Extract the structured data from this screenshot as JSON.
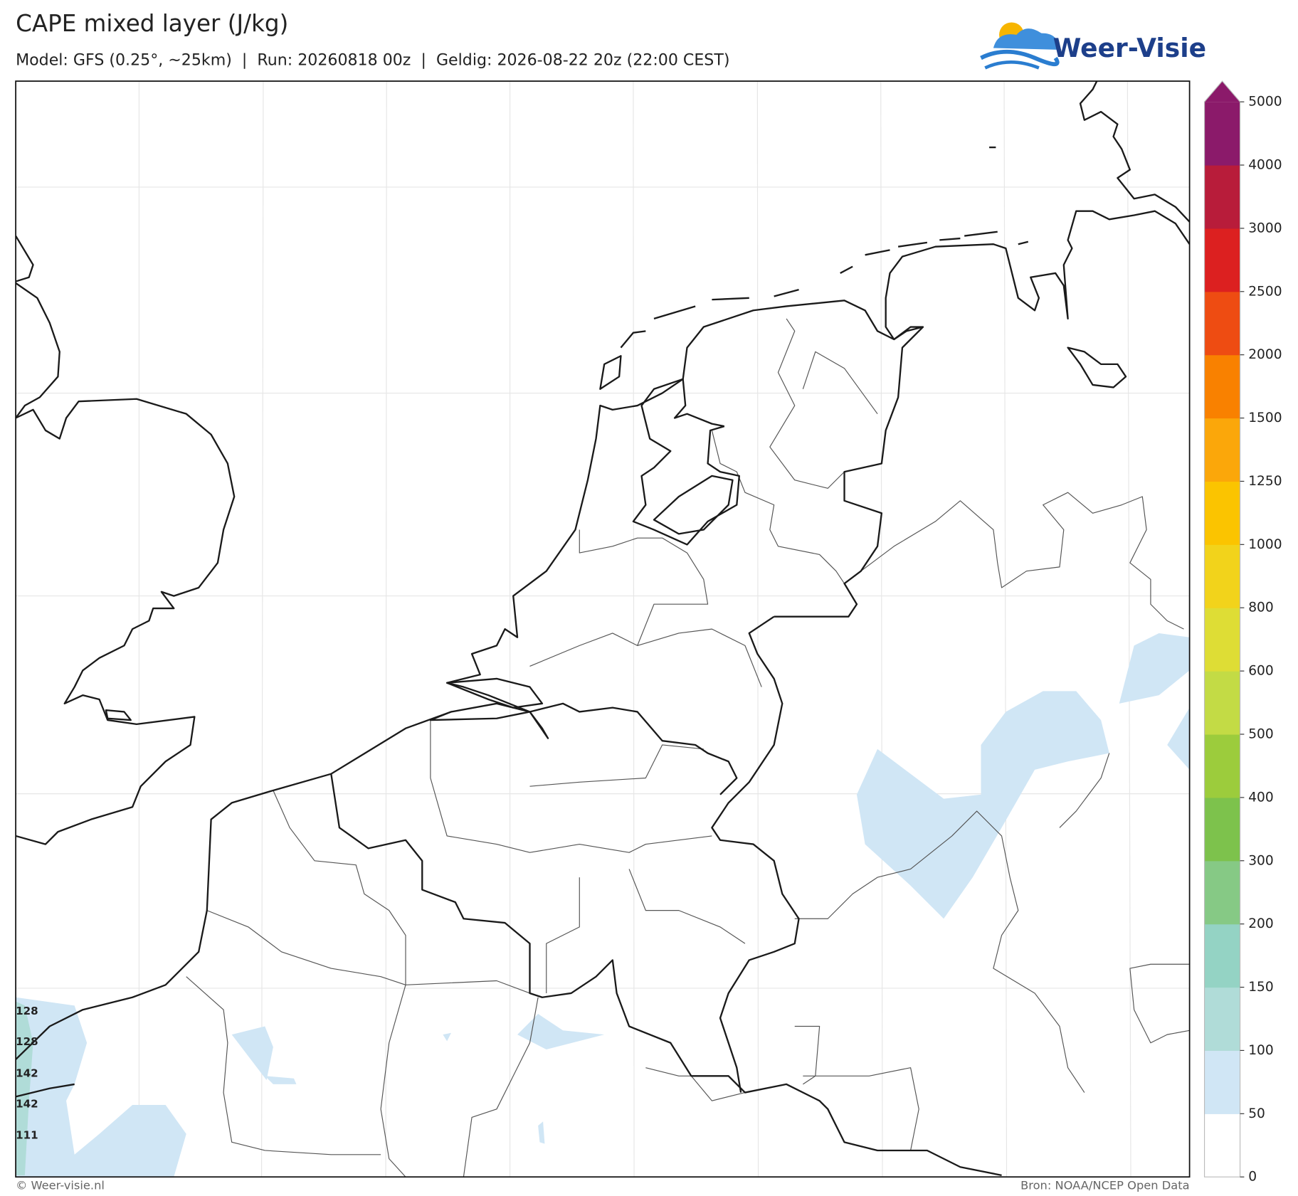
{
  "header": {
    "title": "CAPE mixed layer (J/kg)",
    "subtitle": "Model: GFS (0.25°, ~25km)  |  Run: 20260818 00z  |  Geldig: 2026-08-22 20z (22:00 CEST)",
    "logo": "Weer-Visie"
  },
  "colorbar": {
    "ticks": [
      0,
      50,
      100,
      150,
      200,
      300,
      400,
      500,
      600,
      800,
      1000,
      1250,
      1500,
      2000,
      2500,
      3000,
      4000,
      5000
    ],
    "colors": [
      "#ffffff",
      "#d0e6f5",
      "#b0dcd8",
      "#94d3c4",
      "#86c985",
      "#7dc24c",
      "#9ccc3c",
      "#c3db45",
      "#dedd35",
      "#f2d31b",
      "#fbc400",
      "#fba70a",
      "#f98100",
      "#ee4c12",
      "#dc2020",
      "#b81c3a",
      "#8b1a6a"
    ],
    "extend_color": "#8b1a6a"
  },
  "point_labels": [
    128,
    128,
    142,
    142,
    111
  ],
  "footer": {
    "left": "© Weer-visie.nl",
    "right": "Bron: NOAA/NCEP Open Data"
  }
}
